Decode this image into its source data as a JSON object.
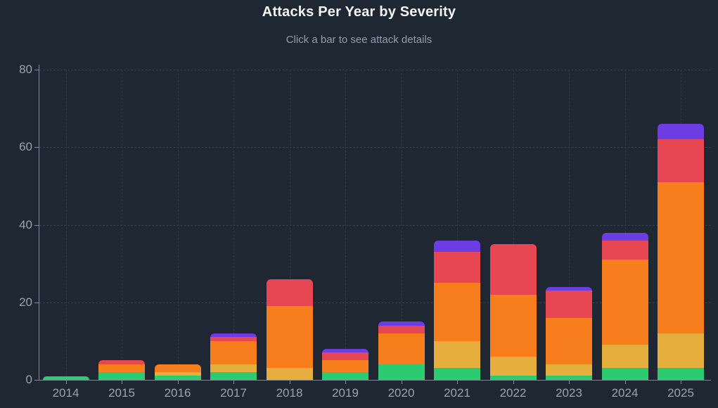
{
  "header": {
    "title": "Attacks Per Year by Severity",
    "subtitle": "Click a bar to see attack details"
  },
  "colors": {
    "background": "#1f2732",
    "title_text": "#f2f4f6",
    "subtitle_text": "#939ca8",
    "axis_label_text": "#99a3ae",
    "axis_line": "#818b98",
    "green": "#2dcb70",
    "yellow": "#e5ae3d",
    "orange": "#f87d1d",
    "red": "#e74653",
    "purple": "#6d3ce4"
  },
  "chart_data": {
    "type": "bar",
    "stacked": true,
    "title": "Attacks Per Year by Severity",
    "subtitle": "Click a bar to see attack details",
    "xlabel": "",
    "ylabel": "",
    "ylim": [
      0,
      80
    ],
    "y_ticks": [
      0,
      20,
      40,
      60,
      80
    ],
    "grid": "dashed horizontal and vertical",
    "legend": "none",
    "categories": [
      "2014",
      "2015",
      "2016",
      "2017",
      "2018",
      "2019",
      "2020",
      "2021",
      "2022",
      "2023",
      "2024",
      "2025"
    ],
    "series": [
      {
        "name": "severity-green",
        "color_key": "green",
        "values": [
          1,
          2,
          1,
          2,
          0,
          2,
          4,
          3,
          1,
          1,
          3,
          3
        ]
      },
      {
        "name": "severity-yellow",
        "color_key": "yellow",
        "values": [
          0,
          0,
          1,
          2,
          3,
          0,
          0,
          7,
          5,
          3,
          6,
          9
        ]
      },
      {
        "name": "severity-orange",
        "color_key": "orange",
        "values": [
          0,
          2,
          2,
          6,
          16,
          3,
          8,
          15,
          16,
          12,
          22,
          39
        ]
      },
      {
        "name": "severity-red",
        "color_key": "red",
        "values": [
          0,
          1,
          0,
          1,
          7,
          2,
          2,
          8,
          13,
          7,
          5,
          11
        ]
      },
      {
        "name": "severity-purple",
        "color_key": "purple",
        "values": [
          0,
          0,
          0,
          1,
          0,
          1,
          1,
          3,
          0,
          1,
          2,
          4
        ]
      }
    ],
    "totals": [
      1,
      5,
      4,
      12,
      26,
      8,
      15,
      36,
      35,
      24,
      38,
      66
    ]
  }
}
